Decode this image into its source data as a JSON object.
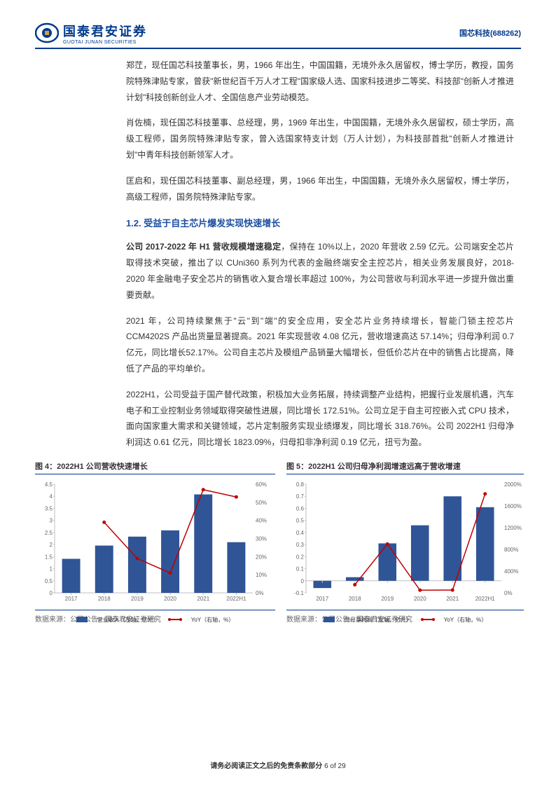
{
  "header": {
    "company_cn": "国泰君安证券",
    "company_en": "GUOTAI JUNAN SECURITIES",
    "stock_name": "国芯科技",
    "stock_code": "(688262)"
  },
  "paragraphs": {
    "p1": "郑茳，现任国芯科技董事长，男，1966 年出生，中国国籍，无境外永久居留权，博士学历，教授，国务院特殊津贴专家，曾获\"新世纪百千万人才工程\"国家级人选、国家科技进步二等奖、科技部\"创新人才推进计划\"科技创新创业人才、全国信息产业劳动模范。",
    "p2": "肖佐楠，现任国芯科技董事、总经理，男，1969 年出生，中国国籍，无境外永久居留权，硕士学历，高级工程师，国务院特殊津贴专家，曾入选国家特支计划（万人计划），为科技部首批\"创新人才推进计划\"中青年科技创新领军人才。",
    "p3": "匡启和，现任国芯科技董事、副总经理，男，1966 年出生，中国国籍，无境外永久居留权，博士学历，高级工程师，国务院特殊津贴专家。",
    "section_title": "1.2.  受益于自主芯片爆发实现快速增长",
    "p4_bold": "公司 2017-2022 年 H1 营收规模增速稳定",
    "p4_rest": "，保持在 10%以上，2020 年营收 2.59 亿元。公司端安全芯片取得技术突破，推出了以 CUni360 系列为代表的金融终端安全主控芯片，相关业务发展良好，2018-2020 年金融电子安全芯片的销售收入复合增长率超过 100%，为公司营收与利润水平进一步提升做出重要贡献。",
    "p5": "2021 年，公司持续聚焦于\"云\"到\"端\"的安全应用，安全芯片业务持续增长，智能门锁主控芯片 CCM4202S 产品出货量显著提高。2021 年实现营收 4.08 亿元，营收增速高达 57.14%；归母净利润 0.7 亿元，同比增长52.17%。公司自主芯片及模组产品销量大幅增长，但低价芯片在中的销售占比提高，降低了产品的平均单价。",
    "p6": "2022H1，公司受益于国产替代政策，积极加大业务拓展，持续调整产业结构，把握行业发展机遇，汽车电子和工业控制业务领域取得突破性进展，同比增长 172.51%。公司立足于自主可控嵌入式 CPU 技术，面向国家重大需求和关键领域，芯片定制服务实现业绩爆发，同比增长 318.76%。公司 2022H1 归母净利润达 0.61 亿元，同比增长 1823.09%，归母扣非净利润 0.19 亿元，扭亏为盈。"
  },
  "chart1": {
    "title": "图 4：2022H1 公司营收快速增长",
    "type": "bar-line-dual-axis",
    "categories": [
      "2017",
      "2018",
      "2019",
      "2020",
      "2021",
      "2022H1"
    ],
    "bar_values": [
      1.41,
      1.96,
      2.33,
      2.59,
      4.08,
      2.1
    ],
    "line_values": [
      null,
      39,
      19,
      11,
      57,
      53
    ],
    "bar_color": "#2f5597",
    "line_color": "#c00000",
    "y1_max": 4.5,
    "y1_step": 0.5,
    "y2_max": 60,
    "y2_step": 10,
    "legend_bar": "营业收入（左轴，亿元）",
    "legend_line": "YoY（右轴，%）",
    "source": "数据来源：公司公告，国泰君安证券研究",
    "axis_color": "#bfbfbf",
    "font_size": 8
  },
  "chart2": {
    "title": "图 5：2022H1 公司归母净利润增速远高于营收增速",
    "type": "bar-line-dual-axis",
    "categories": [
      "2017",
      "2018",
      "2019",
      "2020",
      "2021",
      "2022H1"
    ],
    "bar_values": [
      -0.06,
      0.03,
      0.31,
      0.46,
      0.7,
      0.61
    ],
    "line_values": [
      null,
      150,
      900,
      50,
      52,
      1823
    ],
    "bar_color": "#2f5597",
    "line_color": "#c00000",
    "y1_min": -0.1,
    "y1_max": 0.8,
    "y1_step": 0.1,
    "y2_max": 2000,
    "y2_step": 400,
    "legend_bar": "归母净利润（左轴，亿元）",
    "legend_line": "YoY（右轴，%）",
    "source": "数据来源：公司公告，国泰君安证券研究",
    "axis_color": "#bfbfbf",
    "font_size": 8
  },
  "footer": {
    "disclaimer": "请务必阅读正文之后的免责条款部分",
    "page": "6 of 29"
  }
}
